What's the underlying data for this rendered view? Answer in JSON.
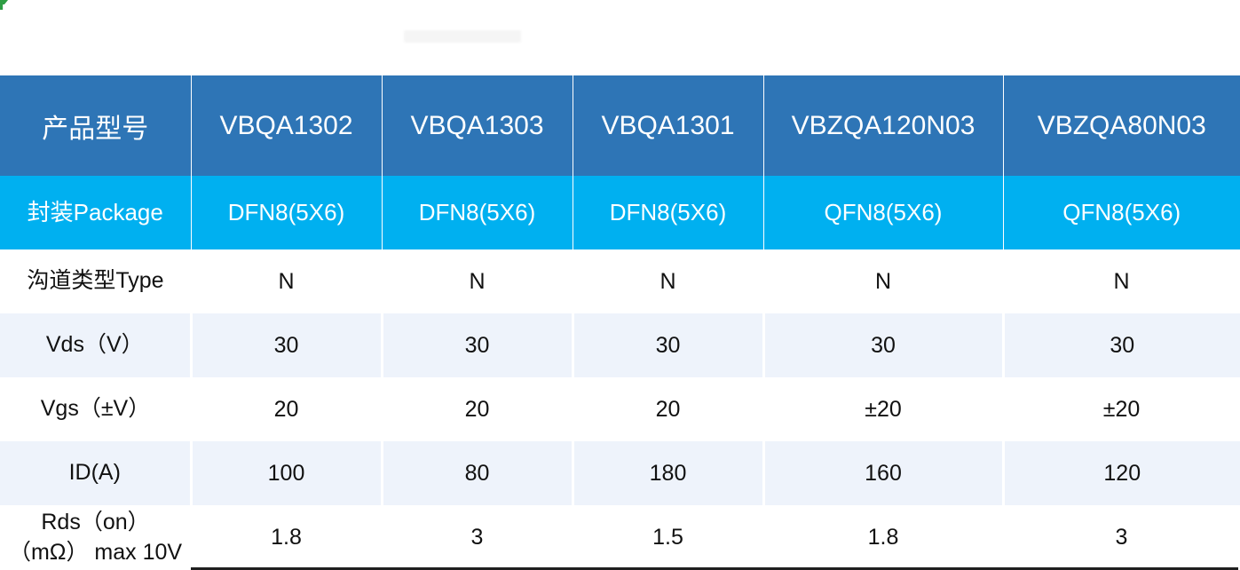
{
  "table": {
    "header": {
      "cells": [
        "产品型号",
        "VBQA1302",
        "VBQA1303",
        "VBQA1301",
        "VBZQA120N03",
        "VBZQA80N03"
      ]
    },
    "rows": [
      {
        "label": "封装Package",
        "values": [
          "DFN8(5X6)",
          "DFN8(5X6)",
          "DFN8(5X6)",
          "QFN8(5X6)",
          "QFN8(5X6)"
        ]
      },
      {
        "label": "沟道类型Type",
        "values": [
          "N",
          "N",
          "N",
          "N",
          "N"
        ]
      },
      {
        "label": "Vds（V）",
        "values": [
          "30",
          "30",
          "30",
          "30",
          "30"
        ]
      },
      {
        "label": "Vgs（±V）",
        "values": [
          "20",
          "20",
          "20",
          "±20",
          "±20"
        ]
      },
      {
        "label": "ID(A)",
        "values": [
          "100",
          "80",
          "180",
          "160",
          "120"
        ]
      },
      {
        "label": "Rds（on） （mΩ） max 10V",
        "values": [
          "1.8",
          "3",
          "1.5",
          "1.8",
          "3"
        ]
      }
    ],
    "colors": {
      "header_bg": "#2e75b6",
      "package_row_bg": "#00b0f0",
      "banded_row_bg": "#eef3fb",
      "header_text": "#ffffff",
      "body_text": "#111111",
      "bottom_border": "#1f1f1f",
      "corner_mark_green": "#2f9e44"
    }
  }
}
